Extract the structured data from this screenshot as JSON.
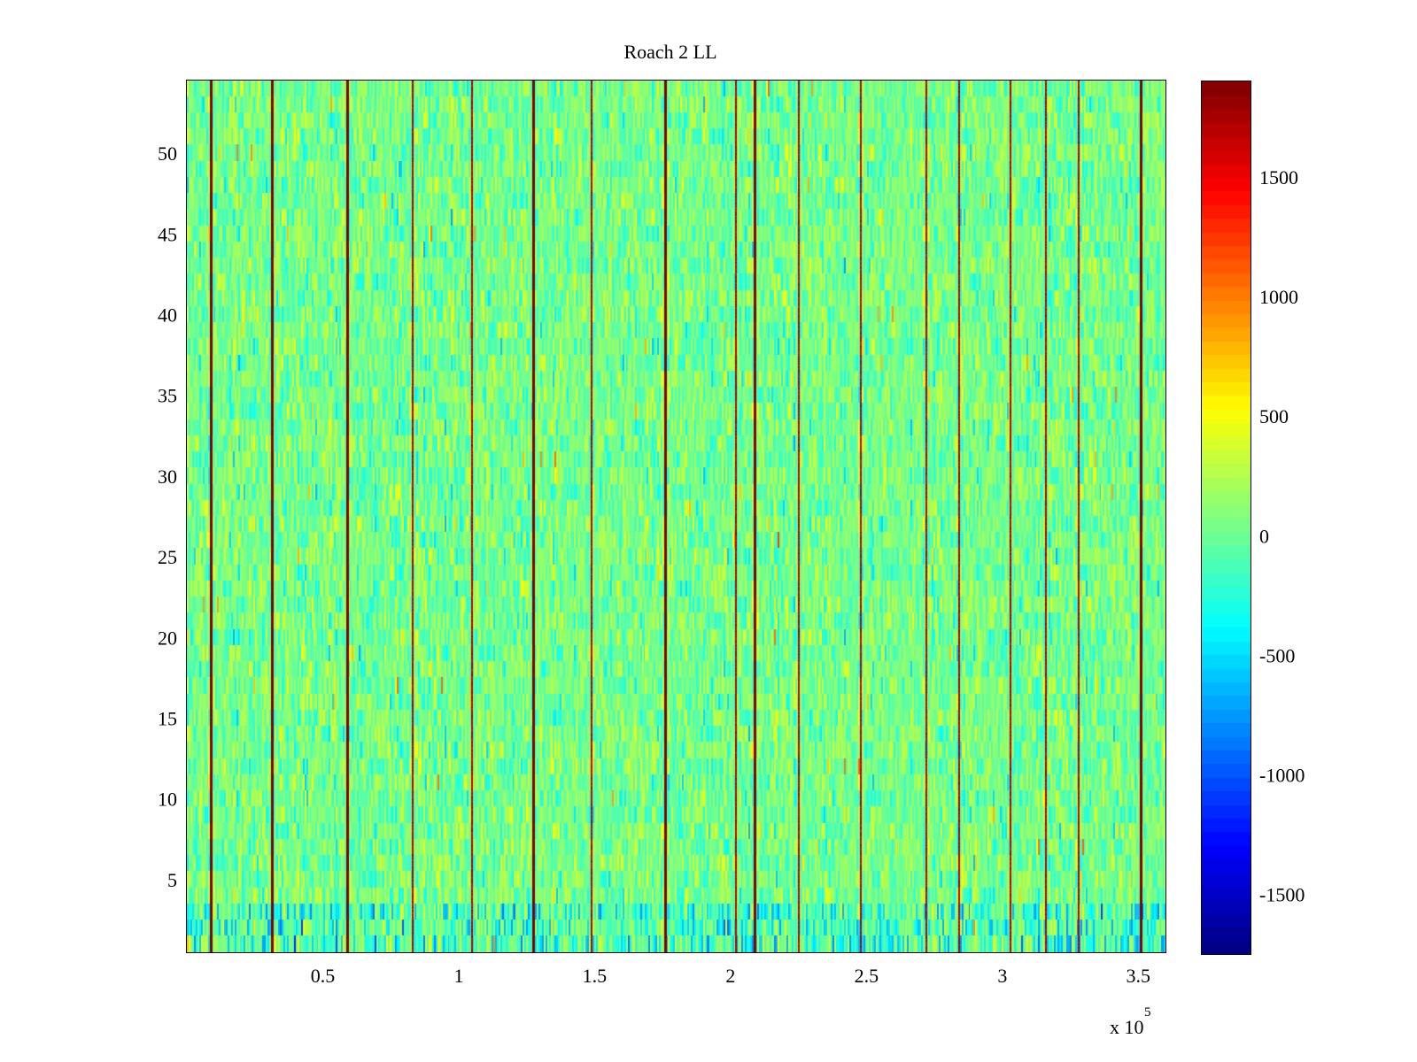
{
  "chart_data": {
    "type": "heatmap",
    "title": "Roach 2 LL",
    "xlabel": "",
    "ylabel": "",
    "x_exponent_label": {
      "base": "x 10",
      "power": "5"
    },
    "xlim": [
      0,
      360000
    ],
    "ylim": [
      0.5,
      54.5
    ],
    "x_ticks": [
      {
        "value": 50000,
        "label": "0.5"
      },
      {
        "value": 100000,
        "label": "1"
      },
      {
        "value": 150000,
        "label": "1.5"
      },
      {
        "value": 200000,
        "label": "2"
      },
      {
        "value": 250000,
        "label": "2.5"
      },
      {
        "value": 300000,
        "label": "3"
      },
      {
        "value": 350000,
        "label": "3.5"
      }
    ],
    "y_ticks": [
      {
        "value": 5,
        "label": "5"
      },
      {
        "value": 10,
        "label": "10"
      },
      {
        "value": 15,
        "label": "15"
      },
      {
        "value": 20,
        "label": "20"
      },
      {
        "value": 25,
        "label": "25"
      },
      {
        "value": 30,
        "label": "30"
      },
      {
        "value": 35,
        "label": "35"
      },
      {
        "value": 40,
        "label": "40"
      },
      {
        "value": 45,
        "label": "45"
      },
      {
        "value": 50,
        "label": "50"
      }
    ],
    "colorbar": {
      "colormap": "jet",
      "clim": [
        -1750,
        1900
      ],
      "ticks": [
        {
          "value": 1500,
          "label": "1500"
        },
        {
          "value": 1000,
          "label": "1000"
        },
        {
          "value": 500,
          "label": "500"
        },
        {
          "value": 0,
          "label": "0"
        },
        {
          "value": -500,
          "label": "-500"
        },
        {
          "value": -1000,
          "label": "-1000"
        },
        {
          "value": -1500,
          "label": "-1500"
        }
      ]
    },
    "rows": 54,
    "background_value_range": [
      -600,
      600
    ],
    "high_value_stripes_x": [
      9000,
      31500,
      59000,
      83000,
      105000,
      127500,
      149000,
      176000,
      202000,
      209000,
      225000,
      248000,
      272000,
      284000,
      303000,
      316000,
      328000,
      351000
    ],
    "dark_red_stripes_x": [
      9000,
      31500,
      59000,
      127500,
      176000,
      209000,
      351000
    ],
    "grid": false,
    "legend": "colorbar-right"
  }
}
